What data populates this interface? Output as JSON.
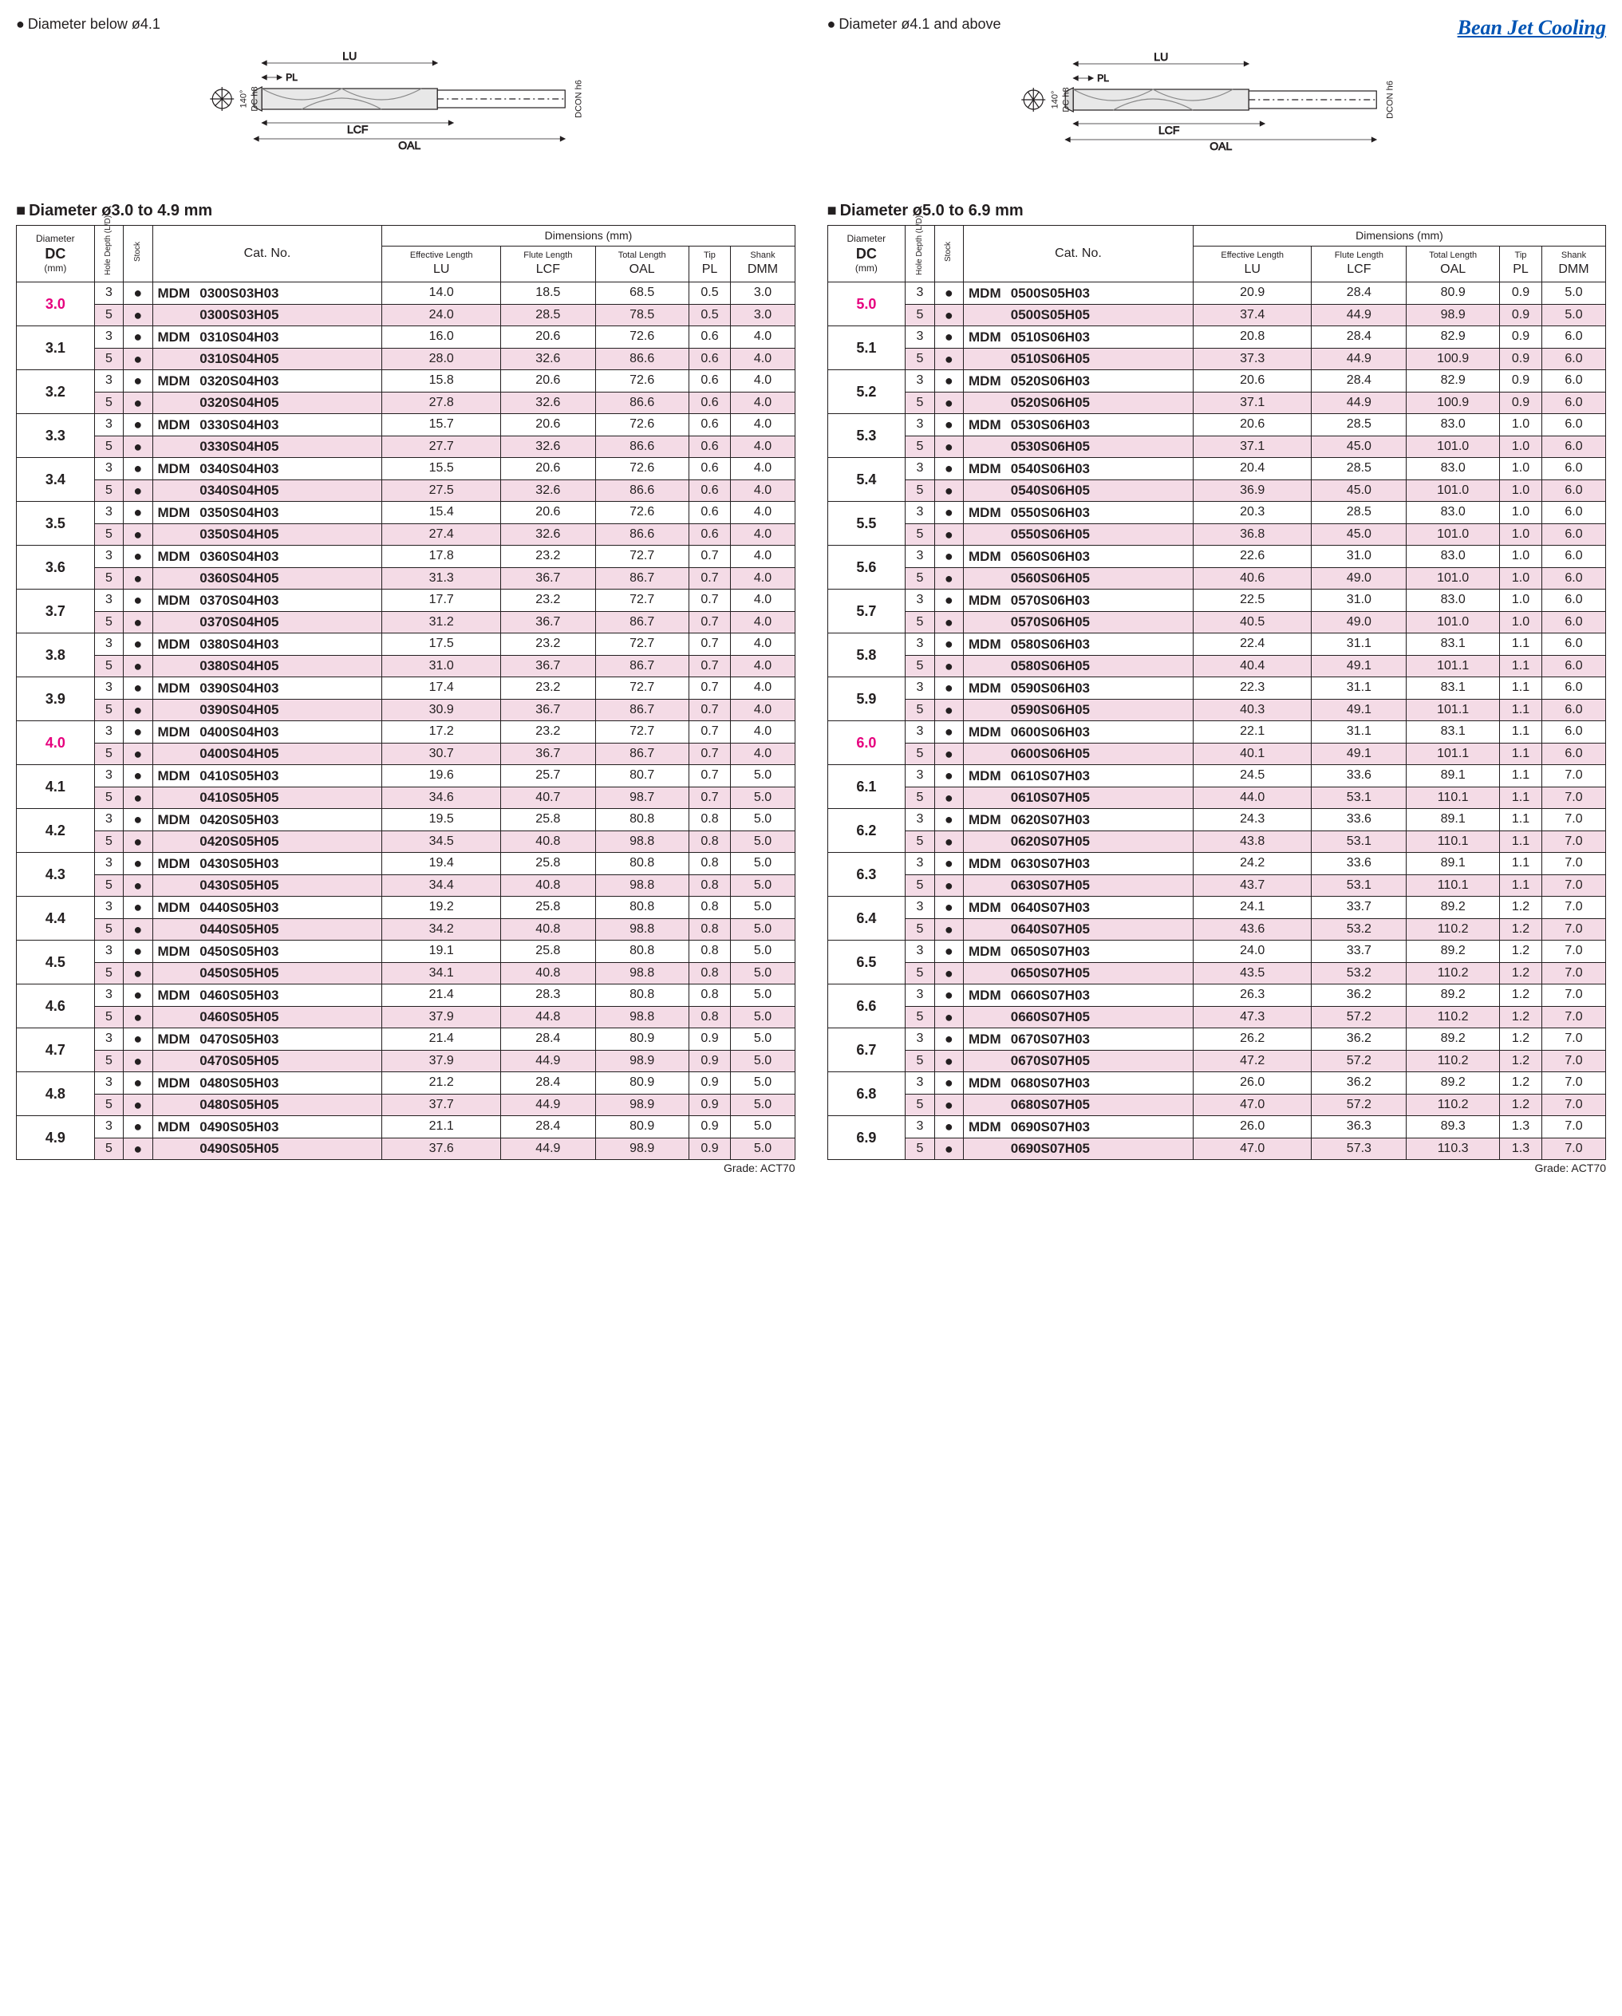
{
  "diagrams": {
    "left_label": "Diameter below ø4.1",
    "right_label": "Diameter ø4.1 and above",
    "brand": "Bean Jet Cooling",
    "dim_labels": {
      "LU": "LU",
      "PL": "PL",
      "LCF": "LCF",
      "OAL": "OAL",
      "DC": "DC h8",
      "DCON": "DCON h6",
      "angle": "140°"
    }
  },
  "headers": {
    "dc_label": "Diameter",
    "dc": "DC",
    "dc_unit": "(mm)",
    "hole": "Hole Depth (L/D)",
    "stock": "Stock",
    "cat": "Cat. No.",
    "dims": "Dimensions (mm)",
    "cols": [
      {
        "top": "Effective Length",
        "bot": "LU"
      },
      {
        "top": "Flute Length",
        "bot": "LCF"
      },
      {
        "top": "Total Length",
        "bot": "OAL"
      },
      {
        "top": "Tip",
        "bot": "PL"
      },
      {
        "top": "Shank",
        "bot": "DMM"
      }
    ]
  },
  "t1": {
    "title": "Diameter ø3.0 to 4.9 mm",
    "grade": "Grade: ACT70",
    "rows": [
      {
        "dc": "3.0",
        "pink": true,
        "r": [
          [
            "3",
            "MDM 0300S03H03",
            "14.0",
            "18.5",
            "68.5",
            "0.5",
            "3.0"
          ],
          [
            "5",
            "0300S03H05",
            "24.0",
            "28.5",
            "78.5",
            "0.5",
            "3.0"
          ]
        ]
      },
      {
        "dc": "3.1",
        "r": [
          [
            "3",
            "MDM 0310S04H03",
            "16.0",
            "20.6",
            "72.6",
            "0.6",
            "4.0"
          ],
          [
            "5",
            "0310S04H05",
            "28.0",
            "32.6",
            "86.6",
            "0.6",
            "4.0"
          ]
        ]
      },
      {
        "dc": "3.2",
        "r": [
          [
            "3",
            "MDM 0320S04H03",
            "15.8",
            "20.6",
            "72.6",
            "0.6",
            "4.0"
          ],
          [
            "5",
            "0320S04H05",
            "27.8",
            "32.6",
            "86.6",
            "0.6",
            "4.0"
          ]
        ]
      },
      {
        "dc": "3.3",
        "r": [
          [
            "3",
            "MDM 0330S04H03",
            "15.7",
            "20.6",
            "72.6",
            "0.6",
            "4.0"
          ],
          [
            "5",
            "0330S04H05",
            "27.7",
            "32.6",
            "86.6",
            "0.6",
            "4.0"
          ]
        ]
      },
      {
        "dc": "3.4",
        "r": [
          [
            "3",
            "MDM 0340S04H03",
            "15.5",
            "20.6",
            "72.6",
            "0.6",
            "4.0"
          ],
          [
            "5",
            "0340S04H05",
            "27.5",
            "32.6",
            "86.6",
            "0.6",
            "4.0"
          ]
        ]
      },
      {
        "dc": "3.5",
        "r": [
          [
            "3",
            "MDM 0350S04H03",
            "15.4",
            "20.6",
            "72.6",
            "0.6",
            "4.0"
          ],
          [
            "5",
            "0350S04H05",
            "27.4",
            "32.6",
            "86.6",
            "0.6",
            "4.0"
          ]
        ]
      },
      {
        "dc": "3.6",
        "r": [
          [
            "3",
            "MDM 0360S04H03",
            "17.8",
            "23.2",
            "72.7",
            "0.7",
            "4.0"
          ],
          [
            "5",
            "0360S04H05",
            "31.3",
            "36.7",
            "86.7",
            "0.7",
            "4.0"
          ]
        ]
      },
      {
        "dc": "3.7",
        "r": [
          [
            "3",
            "MDM 0370S04H03",
            "17.7",
            "23.2",
            "72.7",
            "0.7",
            "4.0"
          ],
          [
            "5",
            "0370S04H05",
            "31.2",
            "36.7",
            "86.7",
            "0.7",
            "4.0"
          ]
        ]
      },
      {
        "dc": "3.8",
        "r": [
          [
            "3",
            "MDM 0380S04H03",
            "17.5",
            "23.2",
            "72.7",
            "0.7",
            "4.0"
          ],
          [
            "5",
            "0380S04H05",
            "31.0",
            "36.7",
            "86.7",
            "0.7",
            "4.0"
          ]
        ]
      },
      {
        "dc": "3.9",
        "r": [
          [
            "3",
            "MDM 0390S04H03",
            "17.4",
            "23.2",
            "72.7",
            "0.7",
            "4.0"
          ],
          [
            "5",
            "0390S04H05",
            "30.9",
            "36.7",
            "86.7",
            "0.7",
            "4.0"
          ]
        ]
      },
      {
        "dc": "4.0",
        "pink": true,
        "r": [
          [
            "3",
            "MDM 0400S04H03",
            "17.2",
            "23.2",
            "72.7",
            "0.7",
            "4.0"
          ],
          [
            "5",
            "0400S04H05",
            "30.7",
            "36.7",
            "86.7",
            "0.7",
            "4.0"
          ]
        ]
      },
      {
        "dc": "4.1",
        "r": [
          [
            "3",
            "MDM 0410S05H03",
            "19.6",
            "25.7",
            "80.7",
            "0.7",
            "5.0"
          ],
          [
            "5",
            "0410S05H05",
            "34.6",
            "40.7",
            "98.7",
            "0.7",
            "5.0"
          ]
        ]
      },
      {
        "dc": "4.2",
        "r": [
          [
            "3",
            "MDM 0420S05H03",
            "19.5",
            "25.8",
            "80.8",
            "0.8",
            "5.0"
          ],
          [
            "5",
            "0420S05H05",
            "34.5",
            "40.8",
            "98.8",
            "0.8",
            "5.0"
          ]
        ]
      },
      {
        "dc": "4.3",
        "r": [
          [
            "3",
            "MDM 0430S05H03",
            "19.4",
            "25.8",
            "80.8",
            "0.8",
            "5.0"
          ],
          [
            "5",
            "0430S05H05",
            "34.4",
            "40.8",
            "98.8",
            "0.8",
            "5.0"
          ]
        ]
      },
      {
        "dc": "4.4",
        "r": [
          [
            "3",
            "MDM 0440S05H03",
            "19.2",
            "25.8",
            "80.8",
            "0.8",
            "5.0"
          ],
          [
            "5",
            "0440S05H05",
            "34.2",
            "40.8",
            "98.8",
            "0.8",
            "5.0"
          ]
        ]
      },
      {
        "dc": "4.5",
        "r": [
          [
            "3",
            "MDM 0450S05H03",
            "19.1",
            "25.8",
            "80.8",
            "0.8",
            "5.0"
          ],
          [
            "5",
            "0450S05H05",
            "34.1",
            "40.8",
            "98.8",
            "0.8",
            "5.0"
          ]
        ]
      },
      {
        "dc": "4.6",
        "r": [
          [
            "3",
            "MDM 0460S05H03",
            "21.4",
            "28.3",
            "80.8",
            "0.8",
            "5.0"
          ],
          [
            "5",
            "0460S05H05",
            "37.9",
            "44.8",
            "98.8",
            "0.8",
            "5.0"
          ]
        ]
      },
      {
        "dc": "4.7",
        "r": [
          [
            "3",
            "MDM 0470S05H03",
            "21.4",
            "28.4",
            "80.9",
            "0.9",
            "5.0"
          ],
          [
            "5",
            "0470S05H05",
            "37.9",
            "44.9",
            "98.9",
            "0.9",
            "5.0"
          ]
        ]
      },
      {
        "dc": "4.8",
        "r": [
          [
            "3",
            "MDM 0480S05H03",
            "21.2",
            "28.4",
            "80.9",
            "0.9",
            "5.0"
          ],
          [
            "5",
            "0480S05H05",
            "37.7",
            "44.9",
            "98.9",
            "0.9",
            "5.0"
          ]
        ]
      },
      {
        "dc": "4.9",
        "r": [
          [
            "3",
            "MDM 0490S05H03",
            "21.1",
            "28.4",
            "80.9",
            "0.9",
            "5.0"
          ],
          [
            "5",
            "0490S05H05",
            "37.6",
            "44.9",
            "98.9",
            "0.9",
            "5.0"
          ]
        ]
      }
    ]
  },
  "t2": {
    "title": "Diameter ø5.0 to 6.9 mm",
    "grade": "Grade: ACT70",
    "rows": [
      {
        "dc": "5.0",
        "pink": true,
        "r": [
          [
            "3",
            "MDM 0500S05H03",
            "20.9",
            "28.4",
            "80.9",
            "0.9",
            "5.0"
          ],
          [
            "5",
            "0500S05H05",
            "37.4",
            "44.9",
            "98.9",
            "0.9",
            "5.0"
          ]
        ]
      },
      {
        "dc": "5.1",
        "r": [
          [
            "3",
            "MDM 0510S06H03",
            "20.8",
            "28.4",
            "82.9",
            "0.9",
            "6.0"
          ],
          [
            "5",
            "0510S06H05",
            "37.3",
            "44.9",
            "100.9",
            "0.9",
            "6.0"
          ]
        ]
      },
      {
        "dc": "5.2",
        "r": [
          [
            "3",
            "MDM 0520S06H03",
            "20.6",
            "28.4",
            "82.9",
            "0.9",
            "6.0"
          ],
          [
            "5",
            "0520S06H05",
            "37.1",
            "44.9",
            "100.9",
            "0.9",
            "6.0"
          ]
        ]
      },
      {
        "dc": "5.3",
        "r": [
          [
            "3",
            "MDM 0530S06H03",
            "20.6",
            "28.5",
            "83.0",
            "1.0",
            "6.0"
          ],
          [
            "5",
            "0530S06H05",
            "37.1",
            "45.0",
            "101.0",
            "1.0",
            "6.0"
          ]
        ]
      },
      {
        "dc": "5.4",
        "r": [
          [
            "3",
            "MDM 0540S06H03",
            "20.4",
            "28.5",
            "83.0",
            "1.0",
            "6.0"
          ],
          [
            "5",
            "0540S06H05",
            "36.9",
            "45.0",
            "101.0",
            "1.0",
            "6.0"
          ]
        ]
      },
      {
        "dc": "5.5",
        "r": [
          [
            "3",
            "MDM 0550S06H03",
            "20.3",
            "28.5",
            "83.0",
            "1.0",
            "6.0"
          ],
          [
            "5",
            "0550S06H05",
            "36.8",
            "45.0",
            "101.0",
            "1.0",
            "6.0"
          ]
        ]
      },
      {
        "dc": "5.6",
        "r": [
          [
            "3",
            "MDM 0560S06H03",
            "22.6",
            "31.0",
            "83.0",
            "1.0",
            "6.0"
          ],
          [
            "5",
            "0560S06H05",
            "40.6",
            "49.0",
            "101.0",
            "1.0",
            "6.0"
          ]
        ]
      },
      {
        "dc": "5.7",
        "r": [
          [
            "3",
            "MDM 0570S06H03",
            "22.5",
            "31.0",
            "83.0",
            "1.0",
            "6.0"
          ],
          [
            "5",
            "0570S06H05",
            "40.5",
            "49.0",
            "101.0",
            "1.0",
            "6.0"
          ]
        ]
      },
      {
        "dc": "5.8",
        "r": [
          [
            "3",
            "MDM 0580S06H03",
            "22.4",
            "31.1",
            "83.1",
            "1.1",
            "6.0"
          ],
          [
            "5",
            "0580S06H05",
            "40.4",
            "49.1",
            "101.1",
            "1.1",
            "6.0"
          ]
        ]
      },
      {
        "dc": "5.9",
        "r": [
          [
            "3",
            "MDM 0590S06H03",
            "22.3",
            "31.1",
            "83.1",
            "1.1",
            "6.0"
          ],
          [
            "5",
            "0590S06H05",
            "40.3",
            "49.1",
            "101.1",
            "1.1",
            "6.0"
          ]
        ]
      },
      {
        "dc": "6.0",
        "pink": true,
        "r": [
          [
            "3",
            "MDM 0600S06H03",
            "22.1",
            "31.1",
            "83.1",
            "1.1",
            "6.0"
          ],
          [
            "5",
            "0600S06H05",
            "40.1",
            "49.1",
            "101.1",
            "1.1",
            "6.0"
          ]
        ]
      },
      {
        "dc": "6.1",
        "r": [
          [
            "3",
            "MDM 0610S07H03",
            "24.5",
            "33.6",
            "89.1",
            "1.1",
            "7.0"
          ],
          [
            "5",
            "0610S07H05",
            "44.0",
            "53.1",
            "110.1",
            "1.1",
            "7.0"
          ]
        ]
      },
      {
        "dc": "6.2",
        "r": [
          [
            "3",
            "MDM 0620S07H03",
            "24.3",
            "33.6",
            "89.1",
            "1.1",
            "7.0"
          ],
          [
            "5",
            "0620S07H05",
            "43.8",
            "53.1",
            "110.1",
            "1.1",
            "7.0"
          ]
        ]
      },
      {
        "dc": "6.3",
        "r": [
          [
            "3",
            "MDM 0630S07H03",
            "24.2",
            "33.6",
            "89.1",
            "1.1",
            "7.0"
          ],
          [
            "5",
            "0630S07H05",
            "43.7",
            "53.1",
            "110.1",
            "1.1",
            "7.0"
          ]
        ]
      },
      {
        "dc": "6.4",
        "r": [
          [
            "3",
            "MDM 0640S07H03",
            "24.1",
            "33.7",
            "89.2",
            "1.2",
            "7.0"
          ],
          [
            "5",
            "0640S07H05",
            "43.6",
            "53.2",
            "110.2",
            "1.2",
            "7.0"
          ]
        ]
      },
      {
        "dc": "6.5",
        "r": [
          [
            "3",
            "MDM 0650S07H03",
            "24.0",
            "33.7",
            "89.2",
            "1.2",
            "7.0"
          ],
          [
            "5",
            "0650S07H05",
            "43.5",
            "53.2",
            "110.2",
            "1.2",
            "7.0"
          ]
        ]
      },
      {
        "dc": "6.6",
        "r": [
          [
            "3",
            "MDM 0660S07H03",
            "26.3",
            "36.2",
            "89.2",
            "1.2",
            "7.0"
          ],
          [
            "5",
            "0660S07H05",
            "47.3",
            "57.2",
            "110.2",
            "1.2",
            "7.0"
          ]
        ]
      },
      {
        "dc": "6.7",
        "r": [
          [
            "3",
            "MDM 0670S07H03",
            "26.2",
            "36.2",
            "89.2",
            "1.2",
            "7.0"
          ],
          [
            "5",
            "0670S07H05",
            "47.2",
            "57.2",
            "110.2",
            "1.2",
            "7.0"
          ]
        ]
      },
      {
        "dc": "6.8",
        "r": [
          [
            "3",
            "MDM 0680S07H03",
            "26.0",
            "36.2",
            "89.2",
            "1.2",
            "7.0"
          ],
          [
            "5",
            "0680S07H05",
            "47.0",
            "57.2",
            "110.2",
            "1.2",
            "7.0"
          ]
        ]
      },
      {
        "dc": "6.9",
        "r": [
          [
            "3",
            "MDM 0690S07H03",
            "26.0",
            "36.3",
            "89.3",
            "1.3",
            "7.0"
          ],
          [
            "5",
            "0690S07H05",
            "47.0",
            "57.3",
            "110.3",
            "1.3",
            "7.0"
          ]
        ]
      }
    ]
  }
}
